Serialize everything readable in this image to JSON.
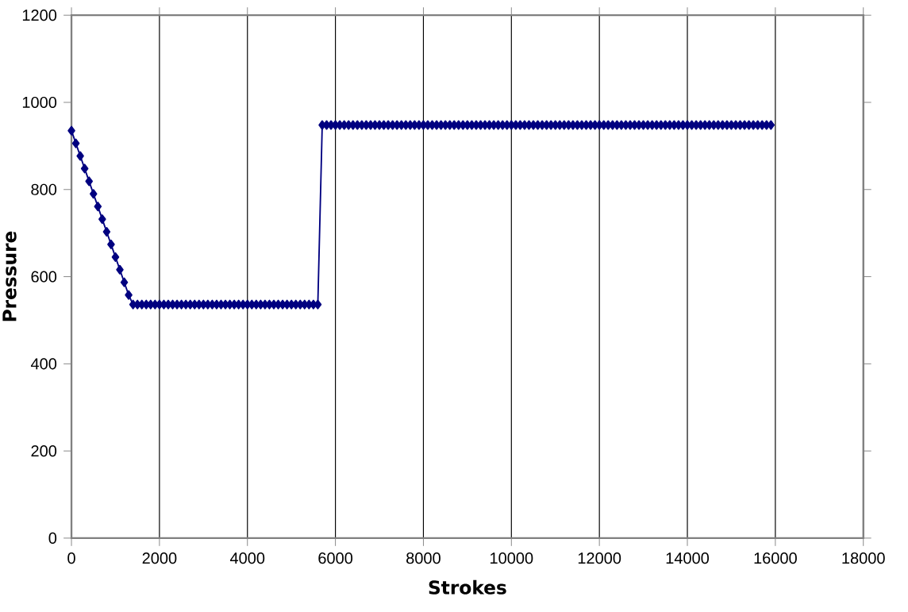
{
  "chart_data": {
    "type": "line",
    "xlabel": "Strokes",
    "ylabel": "Pressure",
    "marker": "diamond",
    "grid": "x",
    "xlim": [
      0,
      18000
    ],
    "ylim": [
      0,
      1200
    ],
    "xticks": [
      0,
      2000,
      4000,
      6000,
      8000,
      10000,
      12000,
      14000,
      16000,
      18000
    ],
    "yticks": [
      0,
      200,
      400,
      600,
      800,
      1000,
      1200
    ],
    "series": [
      {
        "color": "#000080",
        "x": [
          0,
          100,
          200,
          300,
          400,
          500,
          600,
          700,
          800,
          900,
          1000,
          1100,
          1200,
          1300,
          1400,
          1500,
          1600,
          1700,
          1800,
          1900,
          2000,
          2100,
          2200,
          2300,
          2400,
          2500,
          2600,
          2700,
          2800,
          2900,
          3000,
          3100,
          3200,
          3300,
          3400,
          3500,
          3600,
          3700,
          3800,
          3900,
          4000,
          4100,
          4200,
          4300,
          4400,
          4500,
          4600,
          4700,
          4800,
          4900,
          5000,
          5100,
          5200,
          5300,
          5400,
          5500,
          5600,
          5700,
          5800,
          5900,
          6000,
          6100,
          6200,
          6300,
          6400,
          6500,
          6600,
          6700,
          6800,
          6900,
          7000,
          7100,
          7200,
          7300,
          7400,
          7500,
          7600,
          7700,
          7800,
          7900,
          8000,
          8100,
          8200,
          8300,
          8400,
          8500,
          8600,
          8700,
          8800,
          8900,
          9000,
          9100,
          9200,
          9300,
          9400,
          9500,
          9600,
          9700,
          9800,
          9900,
          10000,
          10100,
          10200,
          10300,
          10400,
          10500,
          10600,
          10700,
          10800,
          10900,
          11000,
          11100,
          11200,
          11300,
          11400,
          11500,
          11600,
          11700,
          11800,
          11900,
          12000,
          12100,
          12200,
          12300,
          12400,
          12500,
          12600,
          12700,
          12800,
          12900,
          13000,
          13100,
          13200,
          13300,
          13400,
          13500,
          13600,
          13700,
          13800,
          13900,
          14000,
          14100,
          14200,
          14300,
          14400,
          14500,
          14600,
          14700,
          14800,
          14900,
          15000,
          15100,
          15200,
          15300,
          15400,
          15500,
          15600,
          15700,
          15800,
          15900
        ],
        "values": [
          935,
          906,
          877,
          848,
          819,
          790,
          761,
          732,
          703,
          674,
          645,
          616,
          587,
          558,
          536,
          536,
          536,
          536,
          536,
          536,
          536,
          536,
          536,
          536,
          536,
          536,
          536,
          536,
          536,
          536,
          536,
          536,
          536,
          536,
          536,
          536,
          536,
          536,
          536,
          536,
          536,
          536,
          536,
          536,
          536,
          536,
          536,
          536,
          536,
          536,
          536,
          536,
          536,
          536,
          536,
          536,
          536,
          948,
          948,
          948,
          948,
          948,
          948,
          948,
          948,
          948,
          948,
          948,
          948,
          948,
          948,
          948,
          948,
          948,
          948,
          948,
          948,
          948,
          948,
          948,
          948,
          948,
          948,
          948,
          948,
          948,
          948,
          948,
          948,
          948,
          948,
          948,
          948,
          948,
          948,
          948,
          948,
          948,
          948,
          948,
          948,
          948,
          948,
          948,
          948,
          948,
          948,
          948,
          948,
          948,
          948,
          948,
          948,
          948,
          948,
          948,
          948,
          948,
          948,
          948,
          948,
          948,
          948,
          948,
          948,
          948,
          948,
          948,
          948,
          948,
          948,
          948,
          948,
          948,
          948,
          948,
          948,
          948,
          948,
          948,
          948,
          948,
          948,
          948,
          948,
          948,
          948,
          948,
          948,
          948,
          948,
          948,
          948,
          948,
          948,
          948,
          948,
          948,
          948,
          948
        ]
      }
    ]
  }
}
